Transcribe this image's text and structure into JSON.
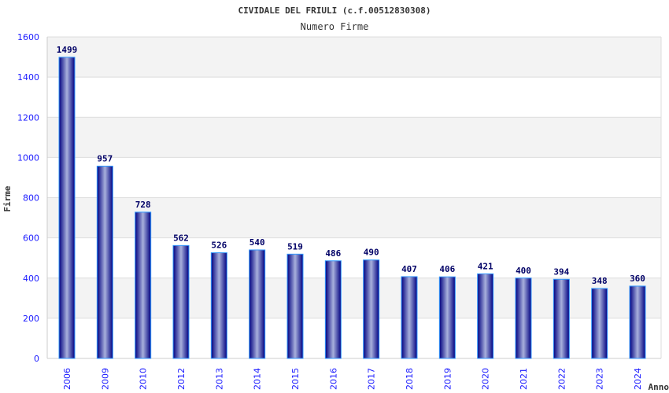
{
  "chart_data": {
    "type": "bar",
    "title": "CIVIDALE DEL FRIULI (c.f.00512830308)",
    "subtitle": "Numero Firme",
    "xlabel": "Anno",
    "ylabel": "Firme",
    "ylim": [
      0,
      1600
    ],
    "yticks": [
      0,
      200,
      400,
      600,
      800,
      1000,
      1200,
      1400,
      1600
    ],
    "grid": true,
    "categories": [
      "2006",
      "2009",
      "2010",
      "2012",
      "2013",
      "2014",
      "2015",
      "2016",
      "2017",
      "2018",
      "2019",
      "2020",
      "2021",
      "2022",
      "2023",
      "2024"
    ],
    "values": [
      1499,
      957,
      728,
      562,
      526,
      540,
      519,
      486,
      490,
      407,
      406,
      421,
      400,
      394,
      348,
      360
    ],
    "colors": {
      "bar_dark": "#000080",
      "bar_light": "#a0a8d8",
      "bar_edge": "#3399ff",
      "tick": "#1a1aff",
      "label": "#000066",
      "band": "#f3f3f3"
    }
  }
}
